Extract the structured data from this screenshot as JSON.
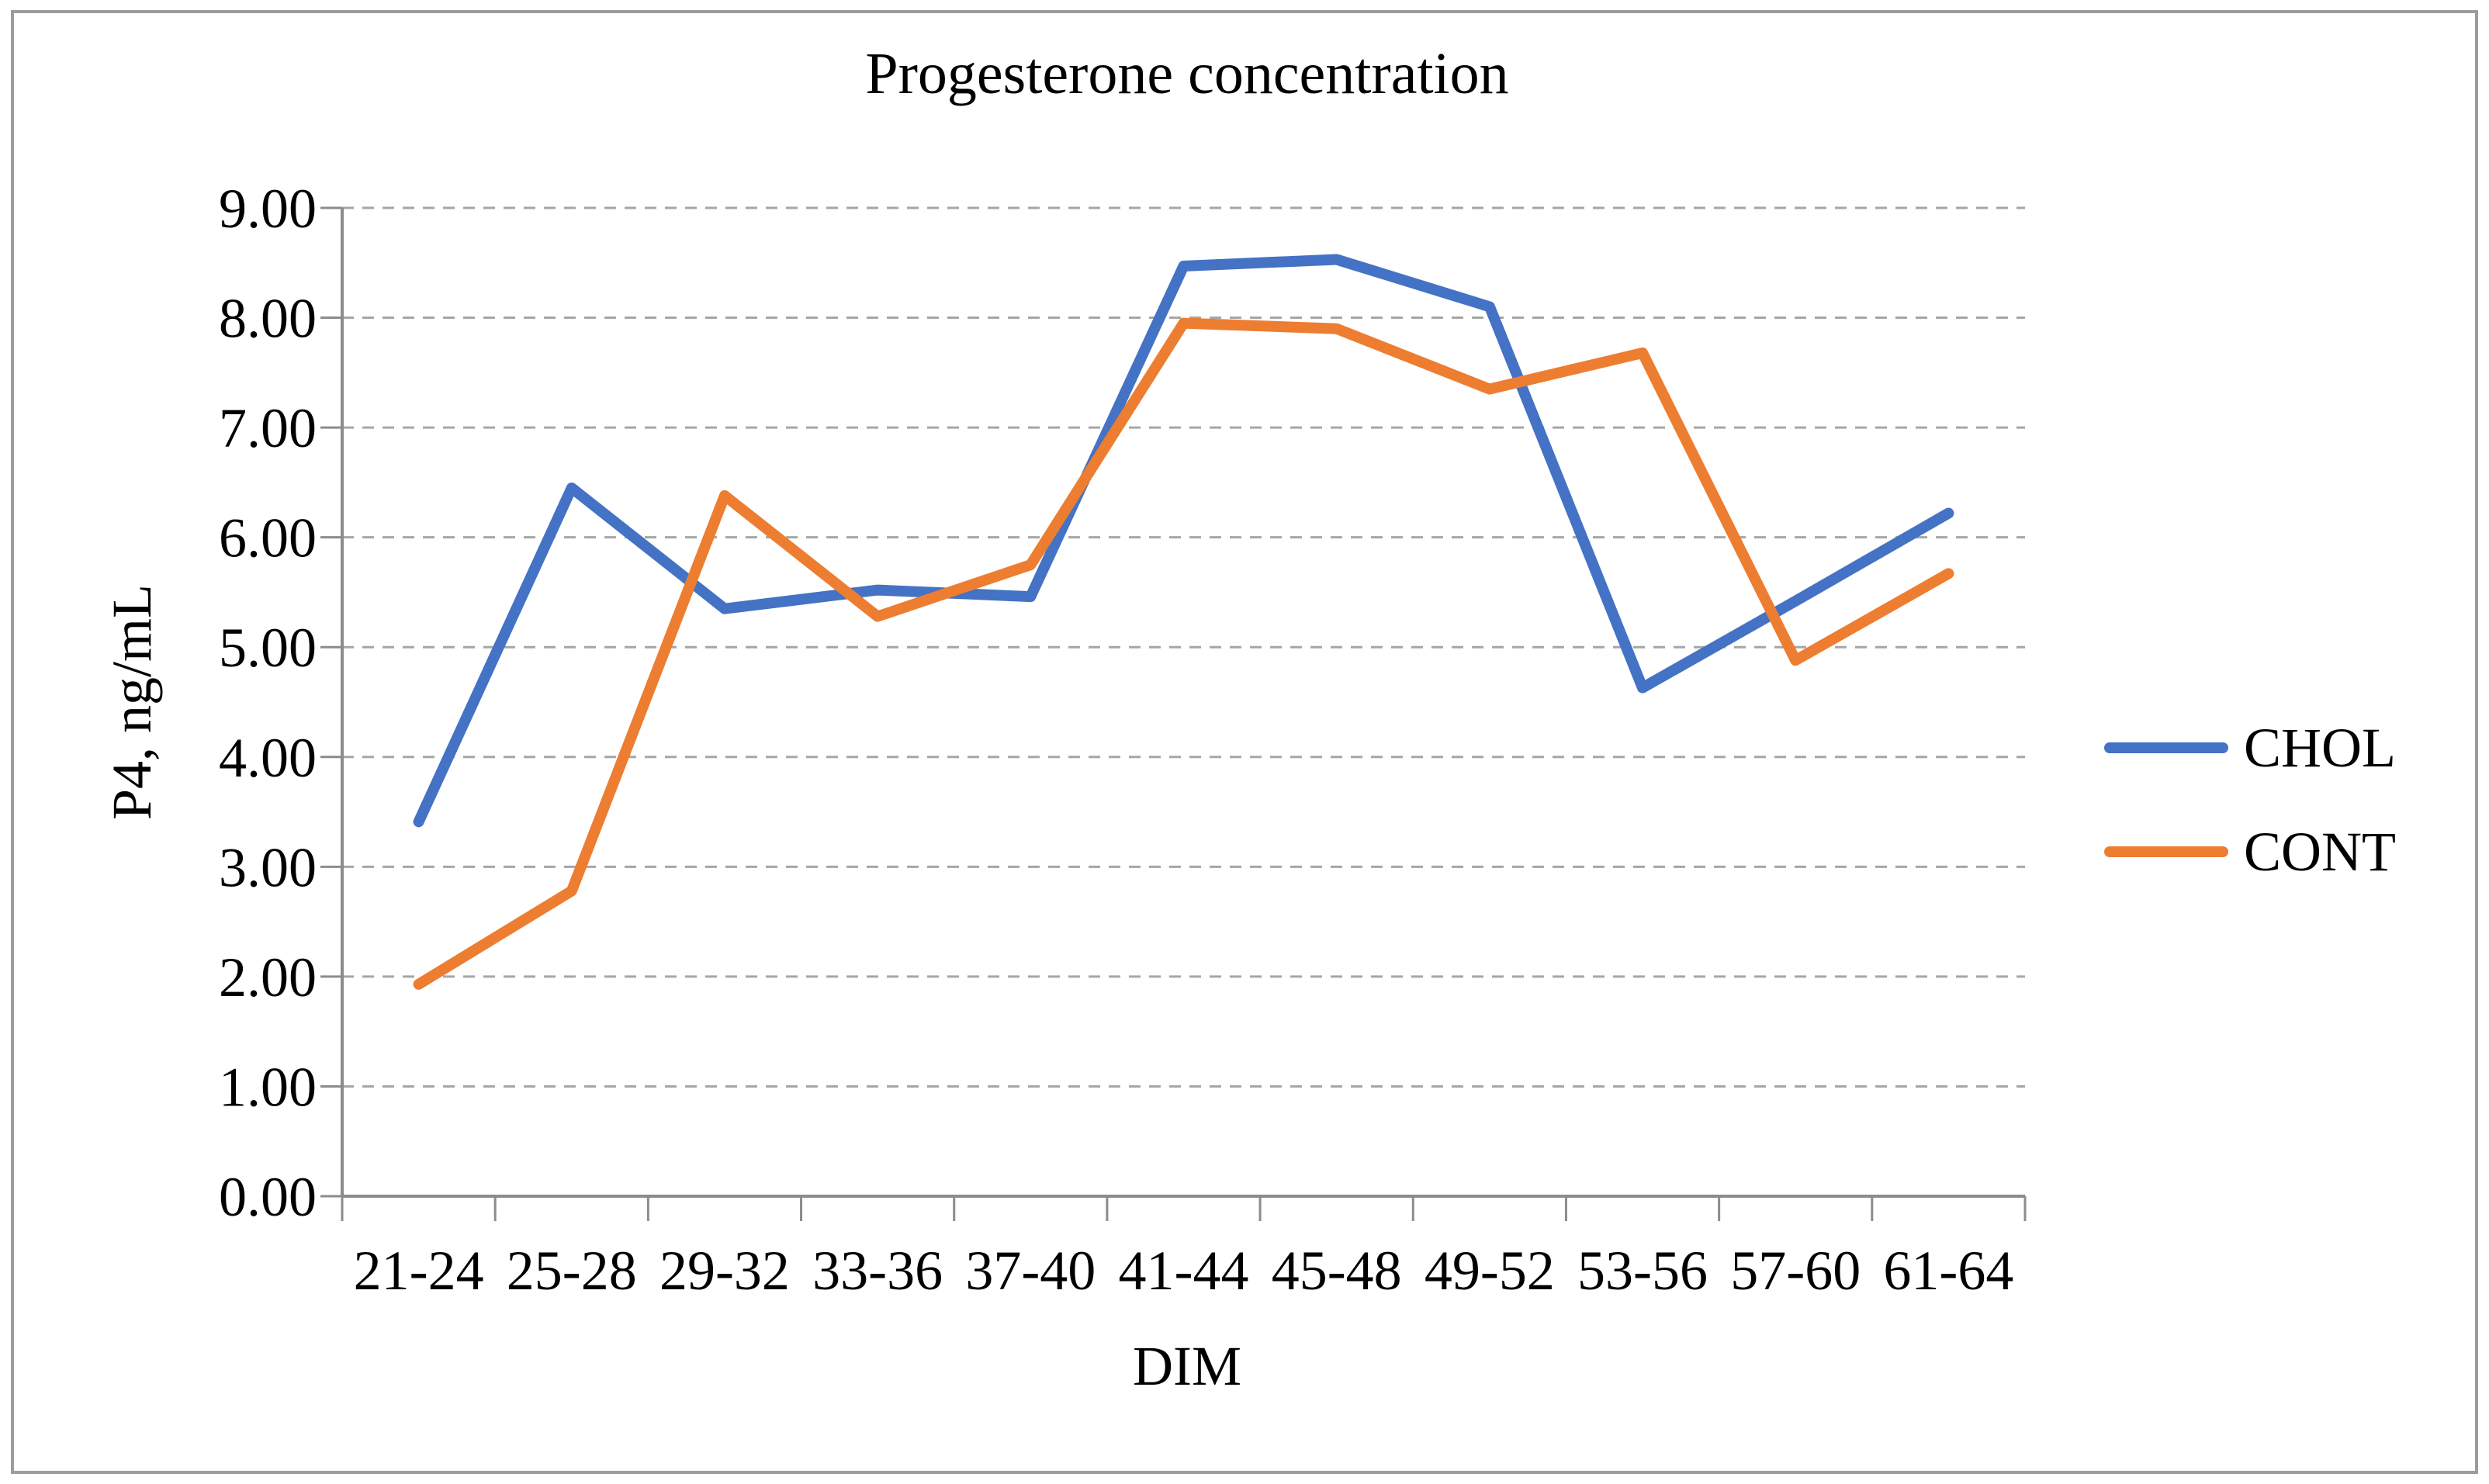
{
  "title": "Progesterone concentration",
  "chart_data": {
    "type": "line",
    "title": "Progesterone concentration",
    "categories": [
      "21-24",
      "25-28",
      "29-32",
      "33-36",
      "37-40",
      "41-44",
      "45-48",
      "49-52",
      "53-56",
      "57-60",
      "61-64"
    ],
    "series": [
      {
        "name": "CHOL",
        "color": "#4472C4",
        "values": [
          3.41,
          6.45,
          5.35,
          5.52,
          5.46,
          8.47,
          8.53,
          8.1,
          4.63,
          5.42,
          6.22
        ]
      },
      {
        "name": "CONT",
        "color": "#ED7D31",
        "values": [
          1.93,
          2.78,
          6.38,
          5.28,
          5.75,
          7.95,
          7.9,
          7.35,
          7.68,
          4.88,
          5.67
        ]
      }
    ],
    "xlabel": "DIM",
    "ylabel": "P4, ng/mL",
    "ylim": [
      0,
      9
    ],
    "ytick_step": 1,
    "ytick_labels": [
      "0.00",
      "1.00",
      "2.00",
      "3.00",
      "4.00",
      "5.00",
      "6.00",
      "7.00",
      "8.00",
      "9.00"
    ],
    "grid": "horizontal-dashed",
    "legend_position": "right"
  },
  "colors": {
    "background": "#FFFFFF",
    "gridline": "#A6A6A6",
    "axis": "#8C8C8C",
    "tick": "#8C8C8C",
    "border": "#9C9C9C",
    "text": "#000000"
  }
}
